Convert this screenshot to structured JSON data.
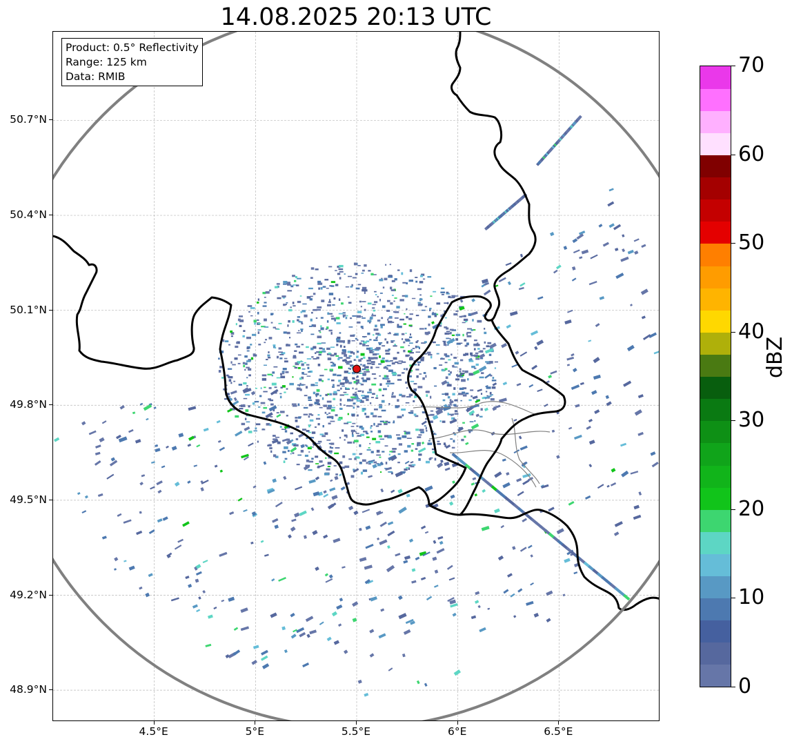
{
  "title": "14.08.2025 20:13 UTC",
  "info": {
    "product": "Product: 0.5° Reflectivity",
    "range": "Range: 125 km",
    "data": "Data: RMIB"
  },
  "map": {
    "lon_range": [
      4.0,
      7.0
    ],
    "lat_range": [
      48.8,
      50.98
    ],
    "radar_site": {
      "lon": 5.5,
      "lat": 49.915,
      "marker_color": "#dd1111"
    },
    "range_ring_color": "#808080",
    "border_color": "#000000",
    "subdivision_color": "#808080",
    "gridlines": true,
    "lat_ticks": [
      {
        "value": 50.7,
        "label": "50.7°N"
      },
      {
        "value": 50.4,
        "label": "50.4°N"
      },
      {
        "value": 50.1,
        "label": "50.1°N"
      },
      {
        "value": 49.8,
        "label": "49.8°N"
      },
      {
        "value": 49.5,
        "label": "49.5°N"
      },
      {
        "value": 49.2,
        "label": "49.2°N"
      },
      {
        "value": 48.9,
        "label": "48.9°N"
      }
    ],
    "lon_ticks": [
      {
        "value": 4.5,
        "label": "4.5°E"
      },
      {
        "value": 5.0,
        "label": "5°E"
      },
      {
        "value": 5.5,
        "label": "5.5°E"
      },
      {
        "value": 6.0,
        "label": "6°E"
      },
      {
        "value": 6.5,
        "label": "6.5°E"
      }
    ]
  },
  "colorbar": {
    "label": "dBZ",
    "min": 0,
    "max": 70,
    "ticks": [
      {
        "value": 70,
        "label": "70"
      },
      {
        "value": 60,
        "label": "60"
      },
      {
        "value": 50,
        "label": "50"
      },
      {
        "value": 40,
        "label": "40"
      },
      {
        "value": 30,
        "label": "30"
      },
      {
        "value": 20,
        "label": "20"
      },
      {
        "value": 10,
        "label": "10"
      },
      {
        "value": 0,
        "label": "0"
      }
    ],
    "colors": [
      "#6676a8",
      "#56689e",
      "#45609f",
      "#4d79b0",
      "#5899c4",
      "#65bdd8",
      "#5dd6c4",
      "#3dd670",
      "#11c41a",
      "#11b41a",
      "#10a41a",
      "#0e9015",
      "#0a7a12",
      "#085e0e",
      "#4a7a12",
      "#afb00a",
      "#ffd800",
      "#ffb400",
      "#ff9c00",
      "#ff7f00",
      "#e40000",
      "#c40000",
      "#a40000",
      "#800000",
      "#ffe0ff",
      "#ffb0ff",
      "#ff70ff",
      "#ea38ea"
    ]
  }
}
